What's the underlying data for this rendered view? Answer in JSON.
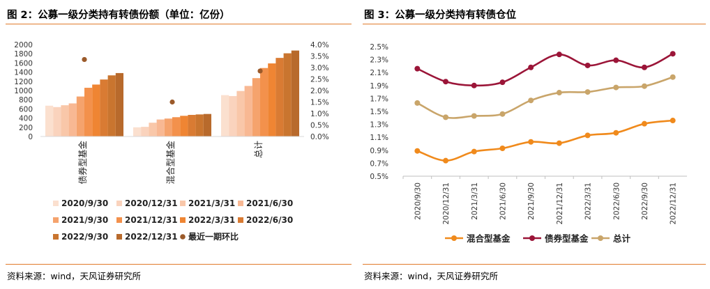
{
  "left": {
    "title": "图 2：公募一级分类持有转债份额（单位：亿份）",
    "source": "资料来源：wind，天风证券研究所"
  },
  "right": {
    "title": "图 3：公募一级分类持有转债仓位",
    "source": "资料来源：wind，天风证券研究所"
  },
  "chart_data": [
    {
      "type": "bar",
      "categories": [
        "债券型基金",
        "混合型基金",
        "总计"
      ],
      "series": [
        {
          "name": "2020/9/30",
          "color": "#fbe0cf",
          "values": [
            670,
            200,
            900
          ]
        },
        {
          "name": "2020/12/31",
          "color": "#fad3bd",
          "values": [
            640,
            210,
            880
          ]
        },
        {
          "name": "2021/3/31",
          "color": "#f9c7a9",
          "values": [
            680,
            300,
            990
          ]
        },
        {
          "name": "2021/6/30",
          "color": "#f8b893",
          "values": [
            720,
            370,
            1100
          ]
        },
        {
          "name": "2021/9/30",
          "color": "#f5a36d",
          "values": [
            870,
            390,
            1270
          ]
        },
        {
          "name": "2021/12/31",
          "color": "#f3914c",
          "values": [
            1060,
            420,
            1490
          ]
        },
        {
          "name": "2022/3/31",
          "color": "#ef8533",
          "values": [
            1130,
            450,
            1590
          ]
        },
        {
          "name": "2022/6/30",
          "color": "#d97b33",
          "values": [
            1240,
            470,
            1710
          ]
        },
        {
          "name": "2022/9/30",
          "color": "#c9752f",
          "values": [
            1330,
            480,
            1810
          ]
        },
        {
          "name": "2022/12/31",
          "color": "#b86a2c",
          "values": [
            1380,
            490,
            1870
          ]
        }
      ],
      "secondary_series": {
        "name": "最近一期环比",
        "type": "scatter",
        "color": "#9b5a2a",
        "values": [
          3.35,
          1.5,
          2.85
        ]
      },
      "y_ticks": [
        "2000",
        "1800",
        "1600",
        "1400",
        "1200",
        "1000",
        "800",
        "600",
        "400",
        "200",
        "0"
      ],
      "ylim": [
        0,
        2000
      ],
      "y2_ticks": [
        "4.0%",
        "3.5%",
        "3.0%",
        "2.5%",
        "2.0%",
        "1.5%",
        "1.0%",
        "0.5%",
        "0.0%"
      ],
      "y2lim": [
        0,
        4.0
      ],
      "legend_position": "bottom"
    },
    {
      "type": "line",
      "x": [
        "2020/9/30",
        "2020/12/31",
        "2021/3/31",
        "2021/6/30",
        "2021/9/30",
        "2021/12/31",
        "2022/3/31",
        "2022/6/30",
        "2022/9/30",
        "2022/12/31"
      ],
      "series": [
        {
          "name": "混合型基金",
          "color": "#f08a1c",
          "values": [
            0.89,
            0.74,
            0.88,
            0.93,
            1.03,
            1.01,
            1.13,
            1.17,
            1.31,
            1.36
          ]
        },
        {
          "name": "债券型基金",
          "color": "#9b1538",
          "values": [
            2.16,
            1.96,
            1.9,
            1.95,
            2.18,
            2.38,
            2.21,
            2.29,
            2.18,
            2.39
          ]
        },
        {
          "name": "总计",
          "color": "#c9a56a",
          "values": [
            1.63,
            1.41,
            1.43,
            1.46,
            1.67,
            1.79,
            1.8,
            1.87,
            1.89,
            2.03
          ]
        }
      ],
      "y_ticks": [
        "2.5%",
        "2.3%",
        "2.1%",
        "1.9%",
        "1.7%",
        "1.5%",
        "1.3%",
        "1.1%",
        "0.9%",
        "0.7%",
        "0.5%"
      ],
      "ylim": [
        0.5,
        2.5
      ],
      "legend_position": "bottom"
    }
  ]
}
